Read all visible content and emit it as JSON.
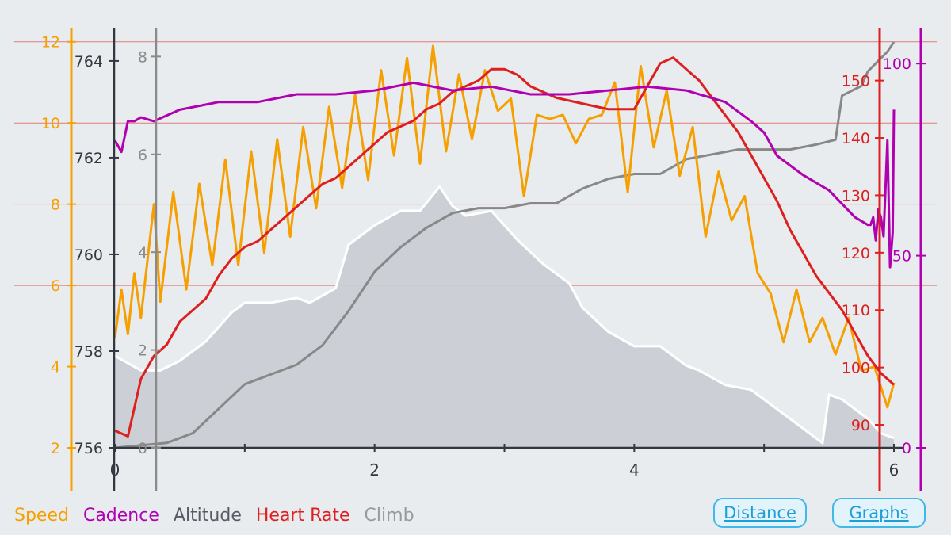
{
  "legend": {
    "speed": "Speed",
    "cadence": "Cadence",
    "altitude": "Altitude",
    "heart_rate": "Heart Rate",
    "climb": "Climb"
  },
  "buttons": {
    "distance": "Distance",
    "graphs": "Graphs"
  },
  "colors": {
    "speed": "#f5a000",
    "cadence": "#b000b0",
    "altitude": "#555b63",
    "heart_rate": "#dd1f1f",
    "climb": "#888888",
    "background": "#e8ecef",
    "grid": "#e27a7a"
  },
  "chart_data": {
    "type": "line",
    "x_axis": {
      "label": "",
      "range": [
        0,
        6
      ],
      "ticks": [
        "0",
        "2",
        "4",
        "6"
      ]
    },
    "axes": {
      "speed": {
        "range": [
          2,
          12.6
        ],
        "ticks": [
          "2",
          "4",
          "6",
          "8",
          "10",
          "12"
        ]
      },
      "altitude": {
        "range": [
          756,
          764.9
        ],
        "ticks": [
          "756",
          "758",
          "760",
          "762",
          "764"
        ]
      },
      "climb": {
        "range": [
          0,
          8.8
        ],
        "ticks": [
          "0",
          "2",
          "4",
          "6",
          "8"
        ]
      },
      "heart_rate": {
        "range": [
          86,
          161
        ],
        "ticks": [
          "90",
          "100",
          "110",
          "120",
          "130",
          "140",
          "150"
        ]
      },
      "cadence": {
        "range": [
          0,
          112
        ],
        "ticks": [
          "0",
          "50",
          "100"
        ]
      }
    },
    "series": [
      {
        "name": "Altitude",
        "x": [
          0,
          0.2,
          0.35,
          0.5,
          0.7,
          0.9,
          1.0,
          1.2,
          1.4,
          1.5,
          1.7,
          1.8,
          2.0,
          2.2,
          2.35,
          2.5,
          2.6,
          2.7,
          2.9,
          3.1,
          3.3,
          3.5,
          3.6,
          3.8,
          4.0,
          4.2,
          4.4,
          4.5,
          4.7,
          4.9,
          5.1,
          5.3,
          5.45,
          5.5,
          5.6,
          5.8,
          5.9,
          6.0
        ],
        "values": [
          757.9,
          757.6,
          757.6,
          757.8,
          758.2,
          758.8,
          759.0,
          759.0,
          759.1,
          759.0,
          759.3,
          760.2,
          760.6,
          760.9,
          760.9,
          761.4,
          761.0,
          760.8,
          760.9,
          760.3,
          759.8,
          759.4,
          758.9,
          758.4,
          758.1,
          758.1,
          757.7,
          757.6,
          757.3,
          757.2,
          756.8,
          756.4,
          756.1,
          757.1,
          757.0,
          756.6,
          756.3,
          756.2
        ]
      },
      {
        "name": "Climb",
        "x": [
          0,
          0.4,
          0.6,
          0.8,
          1.0,
          1.2,
          1.4,
          1.6,
          1.8,
          2.0,
          2.2,
          2.4,
          2.6,
          2.8,
          3.0,
          3.2,
          3.4,
          3.6,
          3.8,
          4.0,
          4.2,
          4.4,
          4.6,
          4.8,
          5.0,
          5.2,
          5.4,
          5.55,
          5.6,
          5.75,
          5.8,
          5.95,
          6.0
        ],
        "values": [
          0,
          0.1,
          0.3,
          0.8,
          1.3,
          1.5,
          1.7,
          2.1,
          2.8,
          3.6,
          4.1,
          4.5,
          4.8,
          4.9,
          4.9,
          5.0,
          5.0,
          5.3,
          5.5,
          5.6,
          5.6,
          5.9,
          6.0,
          6.1,
          6.1,
          6.1,
          6.2,
          6.3,
          7.2,
          7.4,
          7.7,
          8.1,
          8.3
        ]
      },
      {
        "name": "Speed",
        "x": [
          0,
          0.05,
          0.1,
          0.15,
          0.2,
          0.3,
          0.35,
          0.45,
          0.55,
          0.65,
          0.75,
          0.85,
          0.95,
          1.05,
          1.15,
          1.25,
          1.35,
          1.45,
          1.55,
          1.65,
          1.75,
          1.85,
          1.95,
          2.05,
          2.15,
          2.25,
          2.35,
          2.45,
          2.55,
          2.65,
          2.75,
          2.85,
          2.95,
          3.05,
          3.15,
          3.25,
          3.35,
          3.45,
          3.55,
          3.65,
          3.75,
          3.85,
          3.95,
          4.05,
          4.15,
          4.25,
          4.35,
          4.45,
          4.55,
          4.65,
          4.75,
          4.85,
          4.95,
          5.05,
          5.15,
          5.25,
          5.35,
          5.45,
          5.55,
          5.65,
          5.75,
          5.85,
          5.95,
          6.0
        ],
        "values": [
          4.7,
          5.9,
          4.8,
          6.3,
          5.2,
          8.0,
          5.6,
          8.3,
          5.9,
          8.5,
          6.5,
          9.1,
          6.5,
          9.3,
          6.8,
          9.6,
          7.2,
          9.9,
          7.9,
          10.4,
          8.4,
          10.7,
          8.6,
          11.3,
          9.2,
          11.6,
          9.0,
          11.9,
          9.3,
          11.2,
          9.6,
          11.3,
          10.3,
          10.6,
          8.2,
          10.2,
          10.1,
          10.2,
          9.5,
          10.1,
          10.2,
          11.0,
          8.3,
          11.4,
          9.4,
          10.8,
          8.7,
          9.9,
          7.2,
          8.8,
          7.6,
          8.2,
          6.3,
          5.8,
          4.6,
          5.9,
          4.6,
          5.2,
          4.3,
          5.2,
          3.9,
          4.0,
          3.0,
          3.6
        ]
      },
      {
        "name": "Heart Rate",
        "x": [
          0,
          0.1,
          0.2,
          0.3,
          0.4,
          0.5,
          0.6,
          0.7,
          0.8,
          0.9,
          1.0,
          1.1,
          1.2,
          1.3,
          1.4,
          1.5,
          1.6,
          1.7,
          1.8,
          1.9,
          2.0,
          2.1,
          2.2,
          2.3,
          2.4,
          2.5,
          2.6,
          2.7,
          2.8,
          2.9,
          3.0,
          3.1,
          3.2,
          3.4,
          3.6,
          3.8,
          4.0,
          4.1,
          4.2,
          4.3,
          4.4,
          4.5,
          4.6,
          4.7,
          4.8,
          4.9,
          5.0,
          5.1,
          5.2,
          5.3,
          5.4,
          5.5,
          5.6,
          5.7,
          5.8,
          5.9,
          6.0
        ],
        "values": [
          89,
          88,
          98,
          102,
          104,
          108,
          110,
          112,
          116,
          119,
          121,
          122,
          124,
          126,
          128,
          130,
          132,
          133,
          135,
          137,
          139,
          141,
          142,
          143,
          145,
          146,
          148,
          149,
          150,
          152,
          152,
          151,
          149,
          147,
          146,
          145,
          145,
          149,
          153,
          154,
          152,
          150,
          147,
          144,
          141,
          137,
          133,
          129,
          124,
          120,
          116,
          113,
          110,
          106,
          102,
          99,
          97
        ]
      },
      {
        "name": "Cadence",
        "x": [
          0,
          0.05,
          0.1,
          0.15,
          0.2,
          0.3,
          0.5,
          0.8,
          1.1,
          1.4,
          1.7,
          2.0,
          2.3,
          2.6,
          2.9,
          3.2,
          3.5,
          3.8,
          4.1,
          4.4,
          4.7,
          4.9,
          5.0,
          5.1,
          5.3,
          5.5,
          5.7,
          5.8,
          5.82,
          5.84,
          5.86,
          5.88,
          5.9,
          5.92,
          5.95,
          5.97,
          5.99,
          6.0
        ],
        "values": [
          80,
          77,
          85,
          85,
          86,
          85,
          88,
          90,
          90,
          92,
          92,
          93,
          95,
          93,
          94,
          92,
          92,
          93,
          94,
          93,
          90,
          85,
          82,
          76,
          71,
          67,
          60,
          58,
          58,
          60,
          54,
          62,
          60,
          55,
          80,
          47,
          56,
          88
        ]
      }
    ]
  }
}
